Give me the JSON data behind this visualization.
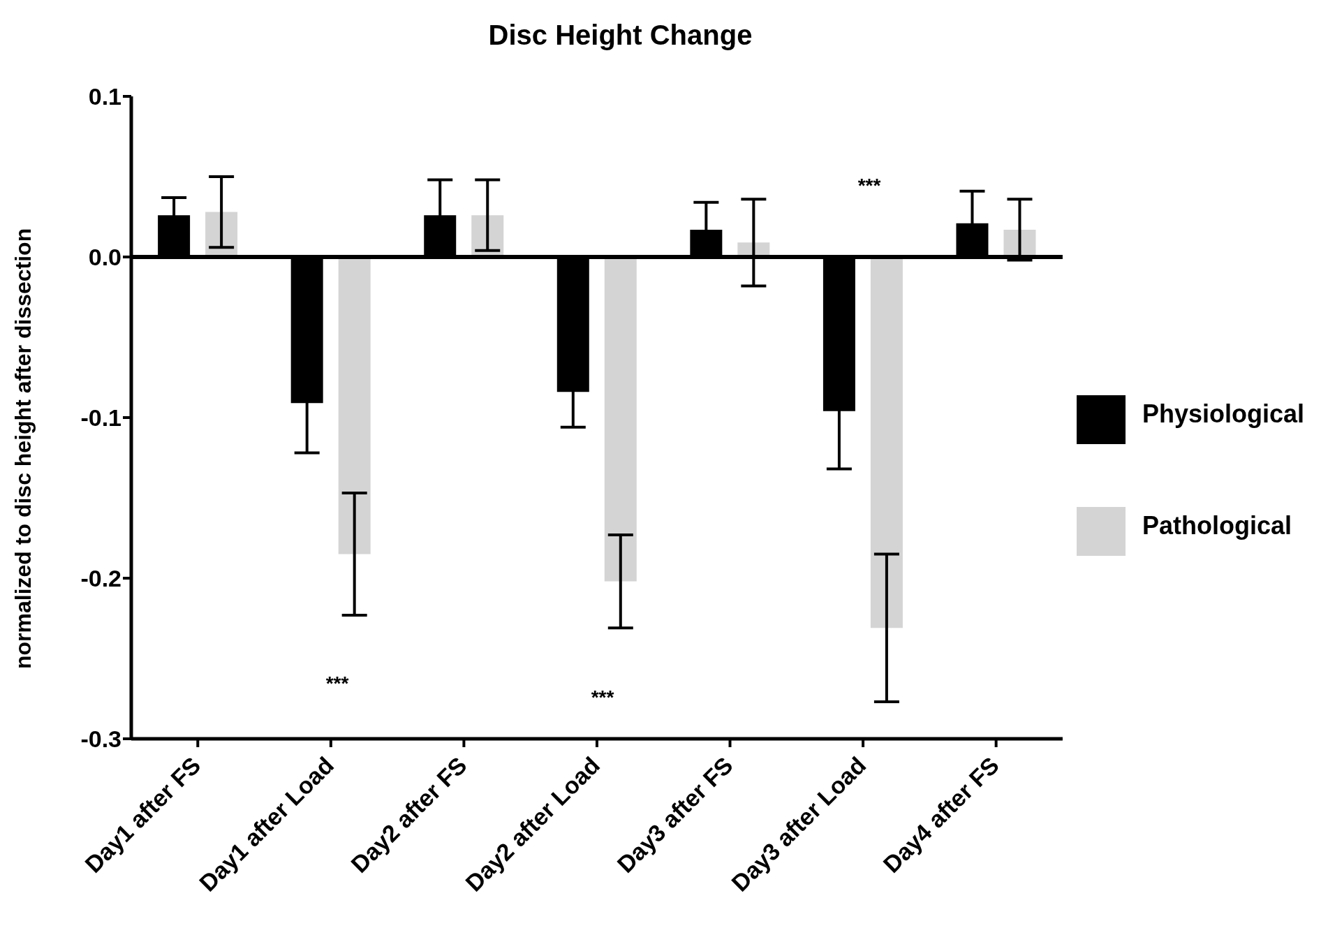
{
  "chart_data": {
    "type": "bar",
    "title": "Disc Height Change",
    "ylabel": "normalized to disc height after dissection",
    "categories": [
      "Day1 after FS",
      "Day1 after Load",
      "Day2 after FS",
      "Day2 after Load",
      "Day3 after FS",
      "Day3 after Load",
      "Day4 after FS"
    ],
    "series": [
      {
        "name": "Physiological",
        "color": "#000000",
        "values": [
          0.026,
          -0.091,
          0.026,
          -0.084,
          0.017,
          -0.096,
          0.021
        ],
        "errors": [
          0.011,
          0.031,
          0.022,
          0.022,
          0.017,
          0.036,
          0.02
        ]
      },
      {
        "name": "Pathological",
        "color": "#d4d4d4",
        "values": [
          0.028,
          -0.185,
          0.026,
          -0.202,
          0.009,
          -0.231,
          0.017
        ],
        "errors": [
          0.022,
          0.038,
          0.022,
          0.029,
          0.027,
          0.046,
          0.019
        ]
      }
    ],
    "ylim": [
      -0.3,
      0.1
    ],
    "yticks": [
      {
        "value": -0.3,
        "label": "-0.3"
      },
      {
        "value": -0.2,
        "label": "-0.2"
      },
      {
        "value": -0.1,
        "label": "-0.1"
      },
      {
        "value": 0,
        "label": "0.0"
      },
      {
        "value": 0.1,
        "label": "0.1"
      }
    ],
    "ref_lines": [
      {
        "axis": "y",
        "value": 0,
        "color": "#000000"
      }
    ],
    "annotations": [
      "***",
      "***",
      "***"
    ],
    "legend": "right"
  }
}
